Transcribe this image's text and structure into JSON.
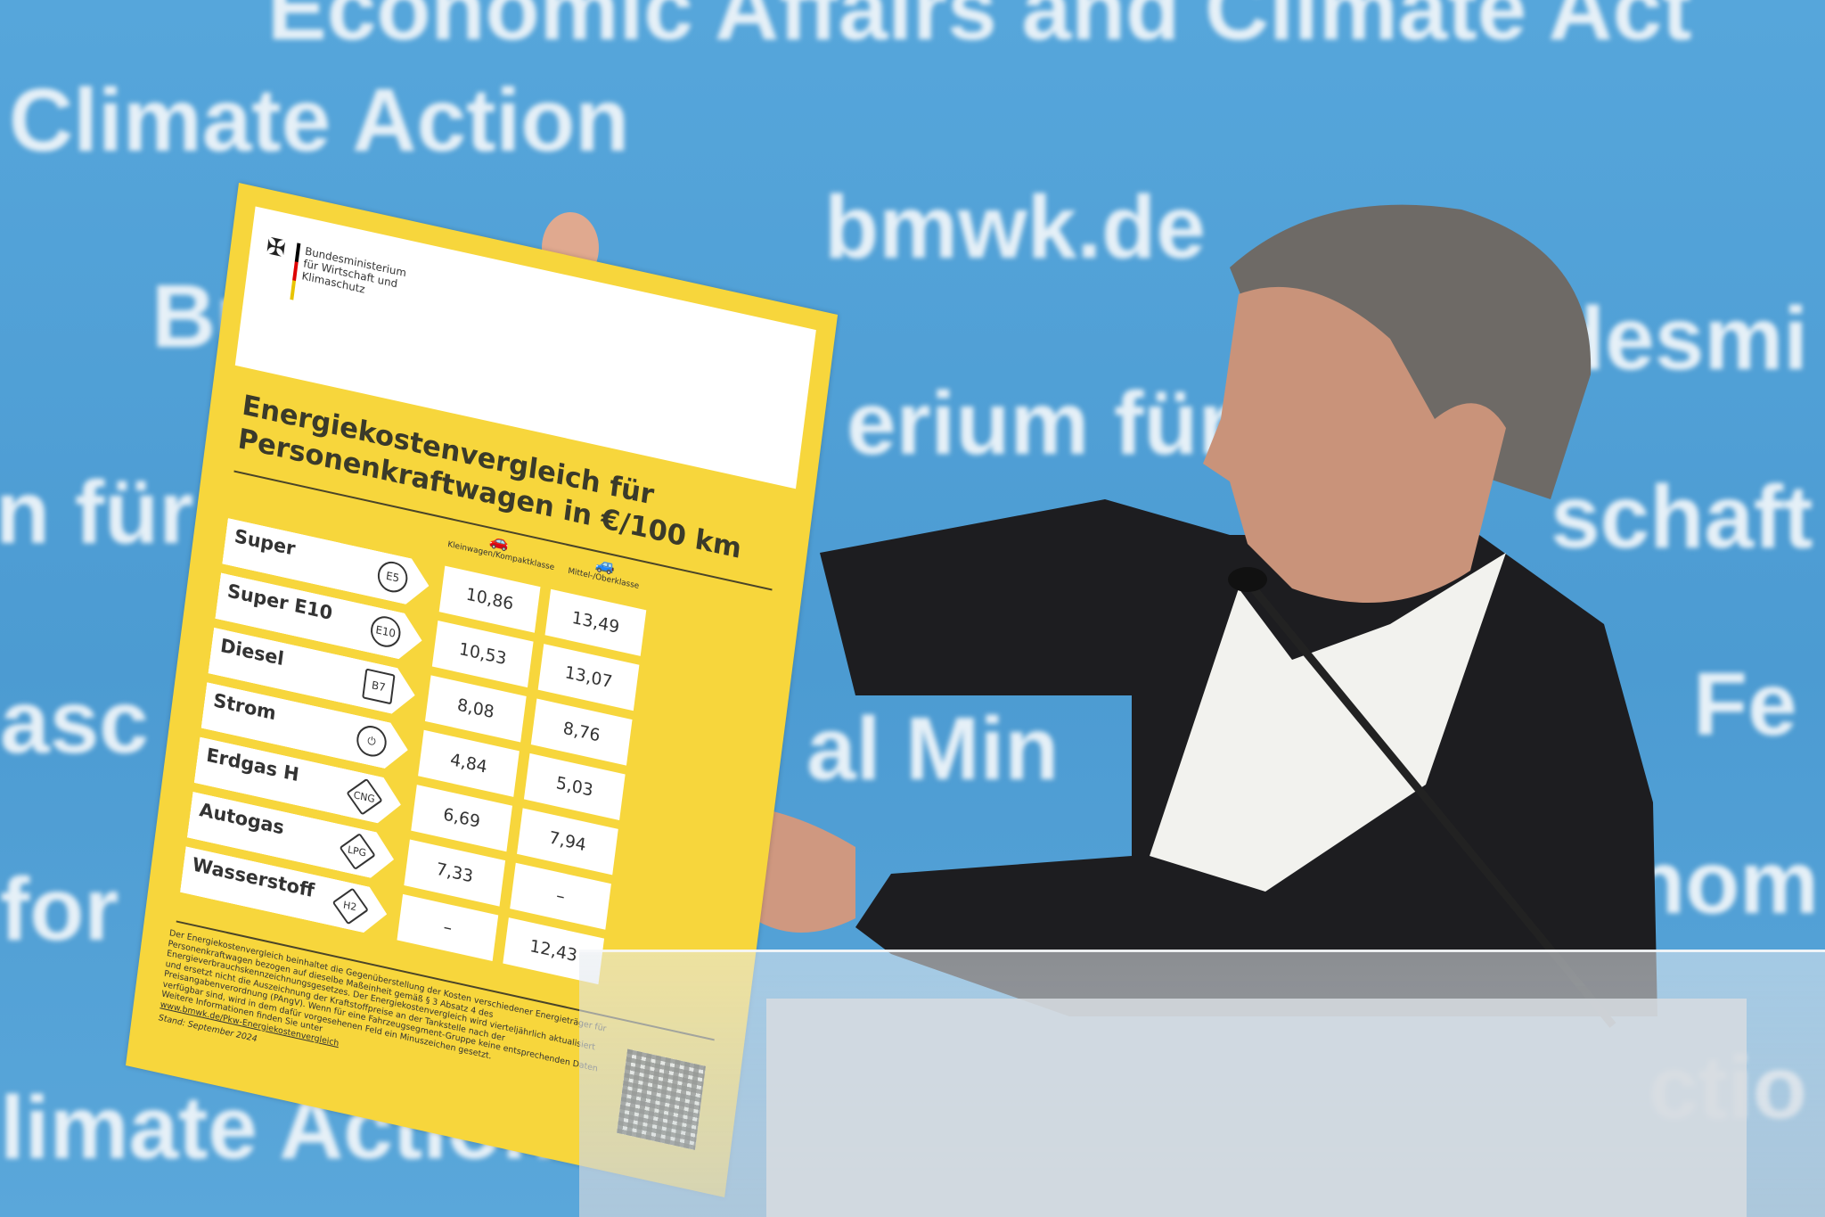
{
  "backdrop": {
    "lines": [
      "Economic Affairs and Climate Act",
      "Climate Action",
      "bmwk.de",
      "Bundesmin",
      "desmi",
      "erium für",
      "schaft",
      "n für",
      "asc",
      "Fe",
      "al Min",
      "nom",
      "for",
      "limate Action",
      "ctio"
    ],
    "color": "#4b9cd3"
  },
  "poster": {
    "ministry": "Bundesministerium für Wirtschaft und Klimaschutz",
    "title_line1": "Energiekostenvergleich für",
    "title_line2": "Personenkraftwagen in €/100 km",
    "columns": [
      "Kleinwagen/Kompaktklasse",
      "Mittel-/Oberklasse"
    ],
    "rows": [
      {
        "label": "Super",
        "badge": "E5",
        "small": "10,86",
        "large": "13,49"
      },
      {
        "label": "Super E10",
        "badge": "E10",
        "small": "10,53",
        "large": "13,07"
      },
      {
        "label": "Diesel",
        "badge": "B7",
        "small": "8,08",
        "large": "8,76"
      },
      {
        "label": "Strom",
        "badge": "plug-icon",
        "small": "4,84",
        "large": "5,03"
      },
      {
        "label": "Erdgas H",
        "badge": "CNG",
        "small": "6,69",
        "large": "7,94"
      },
      {
        "label": "Autogas",
        "badge": "LPG",
        "small": "7,33",
        "large": "–"
      },
      {
        "label": "Wasserstoff",
        "badge": "H2",
        "small": "–",
        "large": "12,43"
      }
    ],
    "footnote": "Der Energiekostenvergleich beinhaltet die Gegenüberstellung der Kosten verschiedener Energieträger für Personenkraftwagen bezogen auf dieselbe Maßeinheit gemäß § 3 Absatz 4 des Energieverbrauchskennzeichnungsgesetzes. Der Energiekostenvergleich wird vierteljährlich aktualisiert und ersetzt nicht die Auszeichnung der Kraftstoffpreise an der Tankstelle nach der Preisangabenverordnung (PAngV). Wenn für eine Fahrzeugsegment-Gruppe keine entsprechenden Daten verfügbar sind, wird in dem dafür vorgesehenen Feld ein Minuszeichen gesetzt.",
    "more_info": "Weitere Informationen finden Sie unter",
    "link": "www.bmwk.de/Pkw-Energiekostenvergleich",
    "date": "Stand: September 2024",
    "accent": "#f7d63c"
  }
}
